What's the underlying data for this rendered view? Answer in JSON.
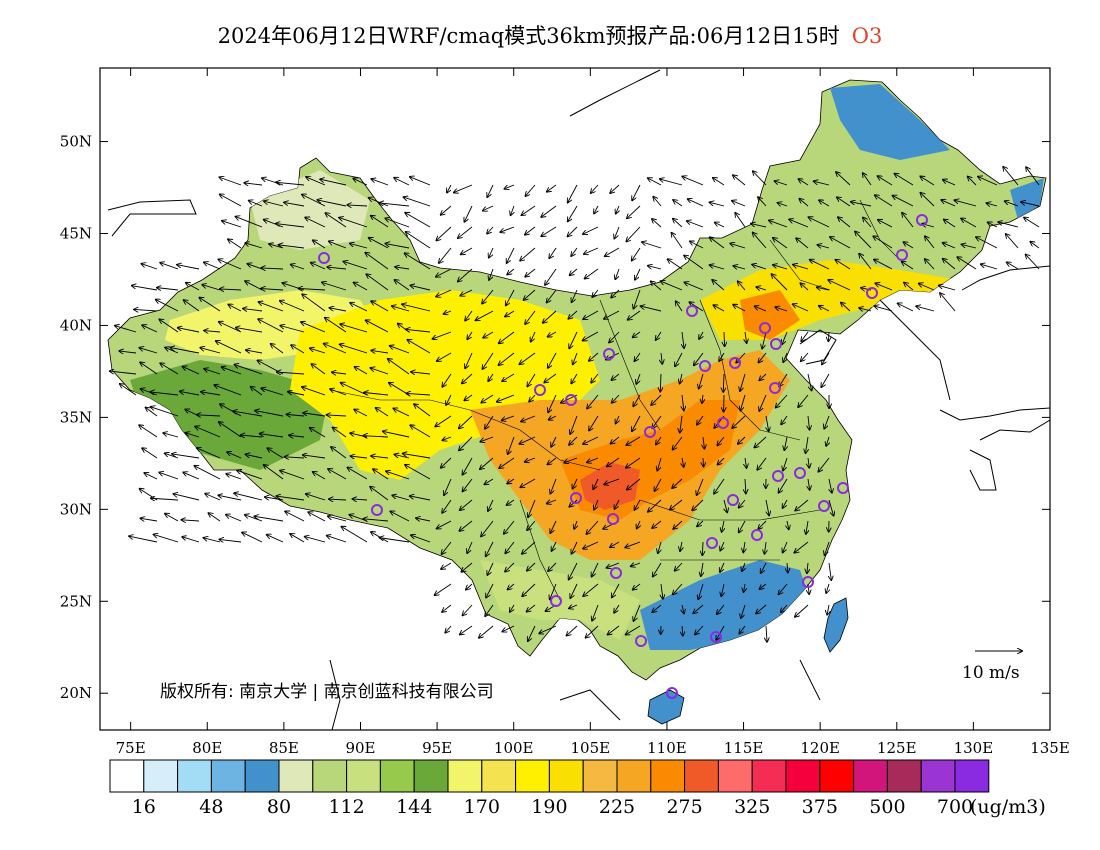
{
  "header": {
    "title": "2024年06月12日WRF/cmaq模式36km预报产品:06月12日15时",
    "species": "O3"
  },
  "map": {
    "lon_range": [
      73,
      135
    ],
    "lat_range": [
      18,
      54
    ],
    "lon_ticks": [
      "75E",
      "80E",
      "85E",
      "90E",
      "95E",
      "100E",
      "105E",
      "110E",
      "115E",
      "120E",
      "125E",
      "130E",
      "135E"
    ],
    "lat_ticks": [
      "20N",
      "25N",
      "30N",
      "35N",
      "40N",
      "45N",
      "50N"
    ],
    "copyright": "版权所有: 南京大学 | 南京创蓝科技有限公司",
    "wind_scale_label": "10 m/s",
    "stations_color": "#8a2be2"
  },
  "colorbar": {
    "colors": [
      "#ffffff",
      "#d6eefa",
      "#a3dcf5",
      "#6eb4e3",
      "#4290cc",
      "#dfe8b8",
      "#b8d67a",
      "#c9e07e",
      "#96c94c",
      "#6aa83a",
      "#f2f56a",
      "#f5e251",
      "#fff000",
      "#fae000",
      "#f5b942",
      "#f5a623",
      "#fa8a00",
      "#f05a28",
      "#ff6b6b",
      "#f52d55",
      "#f5003c",
      "#ff0000",
      "#d1157a",
      "#a62b5a",
      "#9a35d1",
      "#8a2be2"
    ],
    "labels": [
      "16",
      "48",
      "80",
      "112",
      "144",
      "170",
      "190",
      "225",
      "275",
      "325",
      "375",
      "500",
      "700"
    ],
    "unit": "(ug/m3)"
  }
}
